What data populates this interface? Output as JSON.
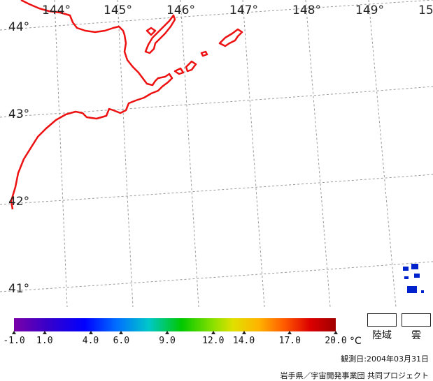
{
  "map": {
    "longitude_labels": [
      "144°",
      "145°",
      "146°",
      "147°",
      "148°",
      "149°",
      "15"
    ],
    "latitude_labels": [
      "44°",
      "43°",
      "42°",
      "41°"
    ],
    "coastline_color": "#ee1111",
    "cloud_color": "#0022cc",
    "grid_color": "#9a9a9a"
  },
  "colorbar": {
    "ticks": [
      "-1.0",
      "1.0",
      "4.0",
      "6.0",
      "9.0",
      "12.0",
      "14.0",
      "17.0",
      "20.0"
    ],
    "unit": "°C",
    "range": [
      -1.0,
      20.0
    ]
  },
  "legend": {
    "land_label": "陸域",
    "cloud_label": "雲"
  },
  "observation": "観測日:2004年03月31日",
  "credit": "岩手県／宇宙開発事業団 共同プロジェクト"
}
